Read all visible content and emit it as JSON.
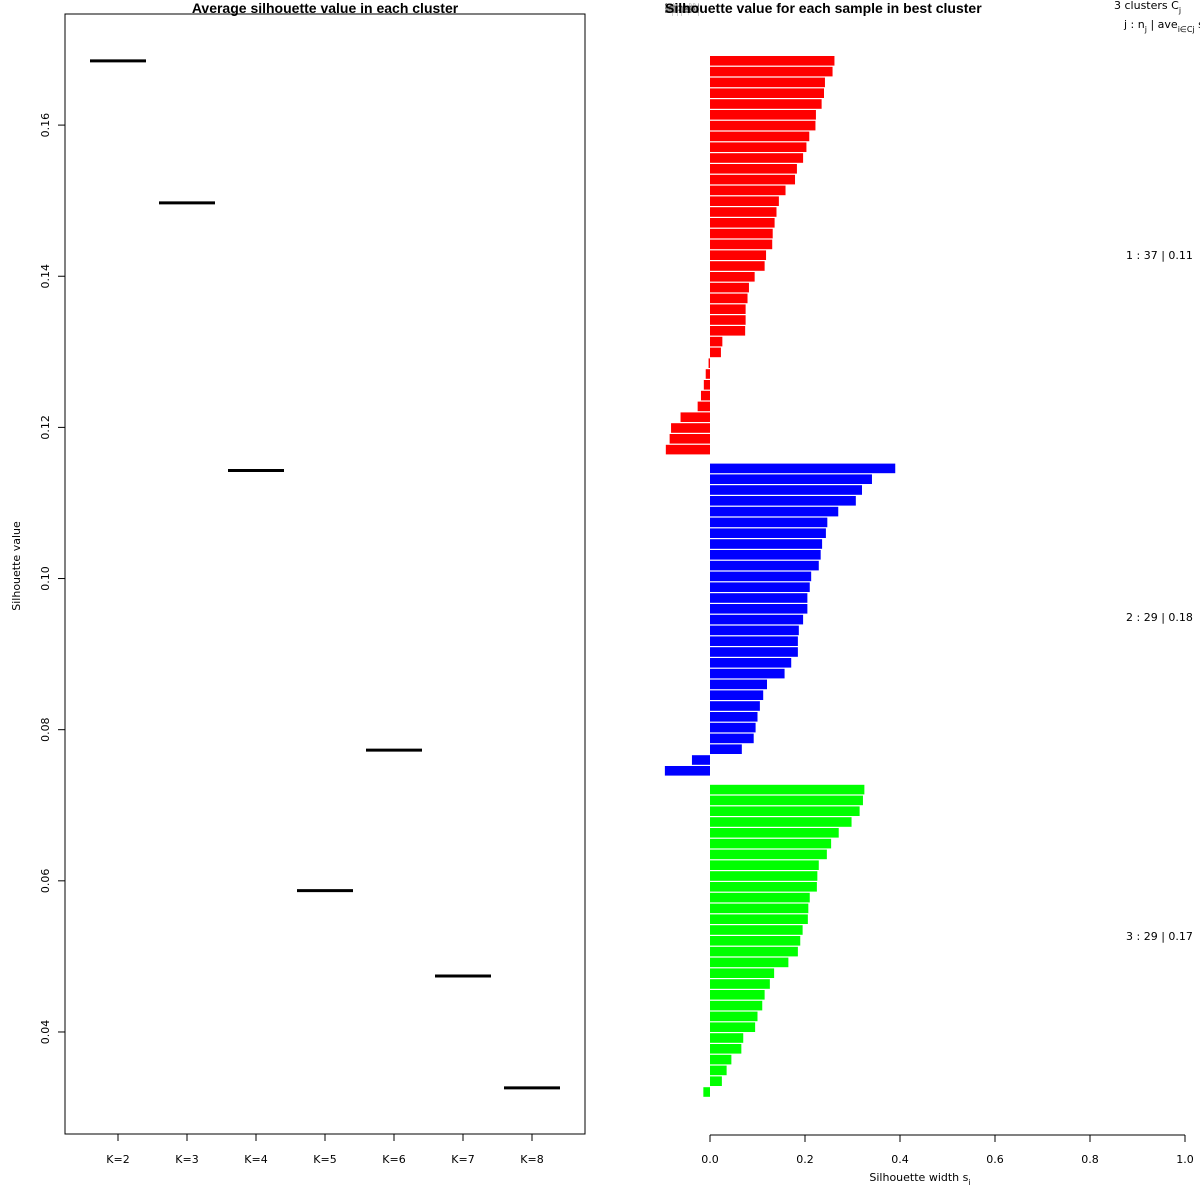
{
  "chart_data": [
    {
      "type": "scatter",
      "marker": "horizontal-segment",
      "title": "Average silhouette value in each cluster",
      "xlabel": "",
      "ylabel": "Silhouette value",
      "categories": [
        "K=2",
        "K=3",
        "K=4",
        "K=5",
        "K=6",
        "K=7",
        "K=8"
      ],
      "values": [
        0.1685,
        0.1497,
        0.1143,
        0.0587,
        0.0773,
        0.0474,
        0.0326
      ],
      "yticks": [
        0.04,
        0.06,
        0.08,
        0.1,
        0.12,
        0.14,
        0.16
      ],
      "ytick_labels": [
        "0.04",
        "0.06",
        "0.08",
        "0.10",
        "0.12",
        "0.14",
        "0.16"
      ],
      "ylim": [
        0.0265,
        0.1747
      ],
      "grid": false,
      "color": "#000000"
    },
    {
      "type": "bar",
      "orientation": "horizontal",
      "title": "Silhouette value for each sample in best cluster",
      "title_overlap": "Silhouette plot of (x = tmp.clusters, dist = dist.mat)",
      "xlabel": "Silhouette width s",
      "xlabel_subscript": "i",
      "xlim": [
        -0.1,
        1.0
      ],
      "xticks": [
        0.0,
        0.2,
        0.4,
        0.6,
        0.8,
        1.0
      ],
      "xtick_labels": [
        "0.0",
        "0.2",
        "0.4",
        "0.6",
        "0.8",
        "1.0"
      ],
      "grid": false,
      "series": [
        {
          "name": "cluster 1",
          "color": "#ff0000",
          "n": 37,
          "values": [
            0.262,
            0.258,
            0.242,
            0.24,
            0.235,
            0.223,
            0.222,
            0.209,
            0.203,
            0.196,
            0.183,
            0.179,
            0.159,
            0.145,
            0.14,
            0.136,
            0.132,
            0.131,
            0.118,
            0.115,
            0.094,
            0.082,
            0.079,
            0.075,
            0.075,
            0.074,
            0.026,
            0.023,
            -0.003,
            -0.009,
            -0.013,
            -0.019,
            -0.026,
            -0.062,
            -0.082,
            -0.085,
            -0.093
          ]
        },
        {
          "name": "cluster 2",
          "color": "#0000ff",
          "n": 29,
          "values": [
            0.39,
            0.341,
            0.32,
            0.307,
            0.27,
            0.247,
            0.244,
            0.236,
            0.233,
            0.229,
            0.213,
            0.21,
            0.205,
            0.205,
            0.196,
            0.187,
            0.185,
            0.185,
            0.171,
            0.157,
            0.12,
            0.112,
            0.105,
            0.1,
            0.096,
            0.092,
            0.067,
            -0.038,
            -0.095
          ]
        },
        {
          "name": "cluster 3",
          "color": "#00ff00",
          "n": 29,
          "values": [
            0.325,
            0.322,
            0.315,
            0.298,
            0.271,
            0.255,
            0.246,
            0.229,
            0.226,
            0.225,
            0.21,
            0.207,
            0.206,
            0.195,
            0.19,
            0.185,
            0.165,
            0.135,
            0.126,
            0.115,
            0.11,
            0.1,
            0.095,
            0.07,
            0.066,
            0.045,
            0.035,
            0.025,
            -0.014
          ]
        }
      ]
    }
  ],
  "legend": {
    "header_line1": "3  clusters  C",
    "header_line1_sub": "j",
    "header_line2": "j :  n",
    "header_line2_sub1": "j",
    "header_line2_mid": " | ave",
    "header_line2_sub2": "i∈Cj",
    "header_line2_end": "  s",
    "header_line2_sub3": "i",
    "rows": [
      {
        "label": "1 :   37  |  0.11"
      },
      {
        "label": "2 :   29  |  0.18"
      },
      {
        "label": "3 :   29  |  0.17"
      }
    ]
  }
}
